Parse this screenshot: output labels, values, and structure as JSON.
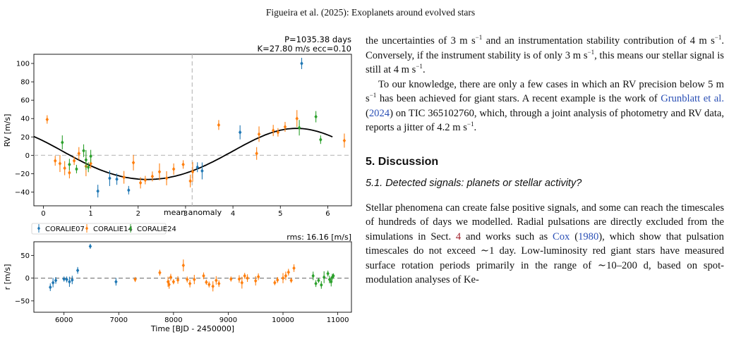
{
  "running_head": "Figueira et al. (2025): Exoplanets around evolved stars",
  "figure": {
    "top_annotation_line1": "P=1035.38 days",
    "top_annotation_line2": "K=27.80 m/s  ecc=0.10",
    "top_ylabel": "RV [m/s]",
    "top_xlabel": "mean anomaly",
    "top_yticks": [
      "100",
      "80",
      "60",
      "40",
      "20",
      "0",
      "−20",
      "−40"
    ],
    "top_xticks": [
      "0",
      "1",
      "2",
      "3",
      "4",
      "5",
      "6"
    ],
    "legend": [
      {
        "label": "CORALIE07",
        "color": "#1f77b4"
      },
      {
        "label": "CORALIE14",
        "color": "#ff7f0e"
      },
      {
        "label": "CORALIE24",
        "color": "#2ca02c"
      }
    ],
    "rms_label": "rms: 16.16 [m/s]",
    "bottom_ylabel": "r [m/s]",
    "bottom_xlabel": "Time [BJD - 2450000]",
    "bottom_yticks": [
      "50",
      "0",
      "−50"
    ],
    "bottom_xticks": [
      "6000",
      "7000",
      "8000",
      "9000",
      "10000",
      "11000"
    ]
  },
  "chart_data": [
    {
      "type": "scatter",
      "title": "P=1035.38 days / K=27.80 m/s  ecc=0.10",
      "xlabel": "mean anomaly",
      "ylabel": "RV [m/s]",
      "xlim": [
        -0.2,
        6.5
      ],
      "ylim": [
        -55,
        110
      ],
      "legend_position": "below",
      "model": {
        "type": "keplerian",
        "period_days": 1035.38,
        "K_ms": 27.8,
        "ecc": 0.1
      },
      "series": [
        {
          "name": "CORALIE07",
          "color": "#1f77b4",
          "x": [
            1.15,
            1.4,
            1.55,
            1.8,
            3.25,
            3.35,
            4.15,
            5.45
          ],
          "y": [
            -39,
            -25,
            -26,
            -38,
            -13,
            -17,
            25,
            100
          ]
        },
        {
          "name": "CORALIE14",
          "color": "#ff7f0e",
          "x": [
            0.08,
            0.25,
            0.35,
            0.45,
            0.55,
            0.65,
            0.75,
            0.9,
            1.0,
            1.7,
            1.9,
            2.05,
            2.15,
            2.3,
            2.45,
            2.6,
            2.75,
            2.95,
            3.1,
            3.15,
            3.7,
            4.5,
            4.55,
            4.85,
            4.95,
            5.1,
            5.35,
            6.35
          ],
          "y": [
            39,
            -6,
            -9,
            -14,
            -19,
            -6,
            2,
            -12,
            -9,
            -24,
            -8,
            -30,
            -27,
            -23,
            -18,
            -25,
            -15,
            -10,
            -28,
            -18,
            33,
            2,
            23,
            27,
            25,
            31,
            40,
            16
          ]
        },
        {
          "name": "CORALIE24",
          "color": "#2ca02c",
          "x": [
            0.4,
            0.55,
            0.7,
            0.85,
            0.9,
            0.95,
            1.0,
            5.4,
            5.75,
            5.85
          ],
          "y": [
            14,
            -10,
            -15,
            5,
            -5,
            -13,
            -1,
            30,
            42,
            17
          ]
        }
      ]
    },
    {
      "type": "scatter",
      "title": "rms: 16.16 [m/s]",
      "xlabel": "Time [BJD - 2450000]",
      "ylabel": "r [m/s]",
      "xlim": [
        5450,
        11250
      ],
      "ylim": [
        -75,
        80
      ],
      "series": [
        {
          "name": "CORALIE07",
          "color": "#1f77b4",
          "x": [
            5750,
            5800,
            5850,
            6000,
            6050,
            6100,
            6150,
            6250,
            6480,
            6950
          ],
          "y": [
            -20,
            -10,
            -5,
            -2,
            -3,
            -8,
            -4,
            17,
            70,
            -8
          ]
        },
        {
          "name": "CORALIE14",
          "color": "#ff7f0e",
          "x": [
            7300,
            7750,
            7900,
            7920,
            7950,
            8000,
            8080,
            8180,
            8250,
            8300,
            8380,
            8550,
            8600,
            8650,
            8720,
            8780,
            8830,
            9050,
            9200,
            9250,
            9300,
            9350,
            9500,
            9550,
            9850,
            9900,
            10000,
            10050,
            10100,
            10150,
            10200
          ],
          "y": [
            -3,
            12,
            -8,
            -14,
            2,
            -8,
            -4,
            28,
            -3,
            -12,
            -3,
            5,
            -9,
            -14,
            -18,
            -5,
            -12,
            -2,
            -2,
            -10,
            5,
            0,
            -6,
            3,
            -10,
            -4,
            0,
            5,
            13,
            -5,
            22
          ]
        },
        {
          "name": "CORALIE24",
          "color": "#2ca02c",
          "x": [
            10550,
            10600,
            10650,
            10700,
            10750,
            10820,
            10850,
            10880,
            10900,
            10920
          ],
          "y": [
            5,
            -12,
            -5,
            -15,
            2,
            10,
            -3,
            -8,
            2,
            5
          ]
        }
      ]
    }
  ],
  "text": {
    "p1": "the uncertainties of 3 m s",
    "p1_sup": "−1",
    "p1b": " and an instrumentation stability contribution of 4 m s",
    "p1c": ". Conversely, if the instrument stability is of only 3 m s",
    "p1d": ", this means our stellar signal is still at 4 m s",
    "p2a": "To our knowledge, there are only a few cases in which an RV precision below 5 m s",
    "p2b": " has been achieved for giant stars. A recent example is the work of ",
    "p2_cite": "Grunblatt et al.",
    "p2_cite_year": "2024",
    "p2c": " on TIC 365102760, which, through a joint analysis of photometry and RV data, reports a jitter of 4.2 m s",
    "section_title": "5. Discussion",
    "subsection_title": "5.1. Detected signals: planets or stellar activity?",
    "p3a": "Stellar phenomena can create false positive signals, and some can reach the timescales of hundreds of days we modelled. Radial pulsations are directly excluded from the simulations in Sect. ",
    "p3_ref": "4",
    "p3b": " and works such as ",
    "p3_cite": "Cox",
    "p3_cite_year": "1980",
    "p3c": ", which show that pulsation timescales do not exceed ∼1 day. Low-luminosity red giant stars have measured surface rotation periods primarily in the range of ∼10–200 d, based on spot-modulation analyses of Ke-"
  }
}
